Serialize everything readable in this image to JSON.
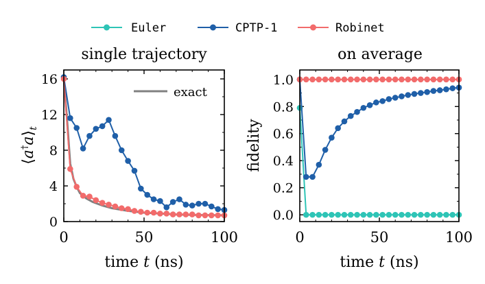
{
  "legend": {
    "entries": [
      {
        "label": "Euler",
        "color": "#2ec4b6"
      },
      {
        "label": "CPTP-1",
        "color": "#1f5fa8"
      },
      {
        "label": "Robinet",
        "color": "#f26b6b"
      }
    ]
  },
  "chart_data": [
    {
      "type": "line",
      "title": "single trajectory",
      "xlabel": "time t (ns)",
      "ylabel": "⟨a†a⟩t",
      "xlim": [
        0,
        100
      ],
      "ylim": [
        0,
        17
      ],
      "xticks": [
        0,
        50,
        100
      ],
      "yticks": [
        0,
        4,
        8,
        12,
        16
      ],
      "annotation": "exact",
      "exact": {
        "color": "#808080",
        "x": [
          0,
          2,
          4,
          6,
          8,
          10,
          14,
          18,
          24,
          30,
          40,
          50,
          60,
          70,
          80,
          90,
          100
        ],
        "y": [
          16.0,
          11.5,
          6.5,
          4.8,
          3.9,
          3.2,
          2.6,
          2.2,
          1.8,
          1.5,
          1.2,
          1.0,
          0.9,
          0.8,
          0.75,
          0.72,
          0.7
        ]
      },
      "series": [
        {
          "name": "CPTP-1",
          "x": [
            0,
            4,
            8,
            12,
            16,
            20,
            24,
            28,
            32,
            36,
            40,
            44,
            48,
            52,
            56,
            60,
            64,
            68,
            72,
            76,
            80,
            84,
            88,
            92,
            96,
            100
          ],
          "y": [
            16.2,
            11.6,
            10.5,
            8.2,
            9.6,
            10.4,
            10.7,
            11.4,
            9.6,
            8.0,
            6.8,
            5.7,
            3.7,
            3.0,
            2.5,
            2.3,
            1.6,
            2.2,
            2.5,
            1.9,
            1.8,
            2.0,
            2.0,
            1.7,
            1.4,
            1.3
          ]
        },
        {
          "name": "Robinet",
          "x": [
            0,
            4,
            8,
            12,
            16,
            20,
            24,
            28,
            32,
            36,
            40,
            44,
            48,
            52,
            56,
            60,
            64,
            68,
            72,
            76,
            80,
            84,
            88,
            92,
            96,
            100
          ],
          "y": [
            16.0,
            5.9,
            3.9,
            2.9,
            2.8,
            2.4,
            2.1,
            1.9,
            1.7,
            1.5,
            1.4,
            1.2,
            1.1,
            1.0,
            1.0,
            0.9,
            0.9,
            0.8,
            0.8,
            0.8,
            0.8,
            0.7,
            0.7,
            0.7,
            0.7,
            0.7
          ]
        }
      ]
    },
    {
      "type": "line",
      "title": "on average",
      "xlabel": "time t (ns)",
      "ylabel": "fidelity",
      "xlim": [
        0,
        100
      ],
      "ylim": [
        -0.05,
        1.07
      ],
      "xticks": [
        0,
        50,
        100
      ],
      "yticks": [
        0.0,
        0.2,
        0.4,
        0.6,
        0.8,
        1.0
      ],
      "series": [
        {
          "name": "Euler",
          "x": [
            0,
            4,
            8,
            12,
            16,
            20,
            24,
            28,
            32,
            36,
            40,
            44,
            48,
            52,
            56,
            60,
            64,
            68,
            72,
            76,
            80,
            84,
            88,
            92,
            96,
            100
          ],
          "y": [
            0.79,
            0.0,
            0.0,
            0.0,
            0.0,
            0.0,
            0.0,
            0.0,
            0.0,
            0.0,
            0.0,
            0.0,
            0.0,
            0.0,
            0.0,
            0.0,
            0.0,
            0.0,
            0.0,
            0.0,
            0.0,
            0.0,
            0.0,
            0.0,
            0.0,
            0.0
          ]
        },
        {
          "name": "CPTP-1",
          "x": [
            0,
            4,
            8,
            12,
            16,
            20,
            24,
            28,
            32,
            36,
            40,
            44,
            48,
            52,
            56,
            60,
            64,
            68,
            72,
            76,
            80,
            84,
            88,
            92,
            96,
            100
          ],
          "y": [
            1.0,
            0.28,
            0.28,
            0.37,
            0.48,
            0.57,
            0.64,
            0.69,
            0.73,
            0.76,
            0.79,
            0.81,
            0.83,
            0.84,
            0.855,
            0.865,
            0.875,
            0.885,
            0.893,
            0.9,
            0.907,
            0.915,
            0.92,
            0.927,
            0.935,
            0.94
          ]
        },
        {
          "name": "Robinet",
          "x": [
            0,
            4,
            8,
            12,
            16,
            20,
            24,
            28,
            32,
            36,
            40,
            44,
            48,
            52,
            56,
            60,
            64,
            68,
            72,
            76,
            80,
            84,
            88,
            92,
            96,
            100
          ],
          "y": [
            1.0,
            1.0,
            1.0,
            1.0,
            1.0,
            1.0,
            1.0,
            1.0,
            1.0,
            1.0,
            1.0,
            1.0,
            1.0,
            1.0,
            1.0,
            1.0,
            1.0,
            1.0,
            1.0,
            1.0,
            1.0,
            1.0,
            1.0,
            1.0,
            1.0,
            1.0
          ]
        }
      ]
    }
  ]
}
